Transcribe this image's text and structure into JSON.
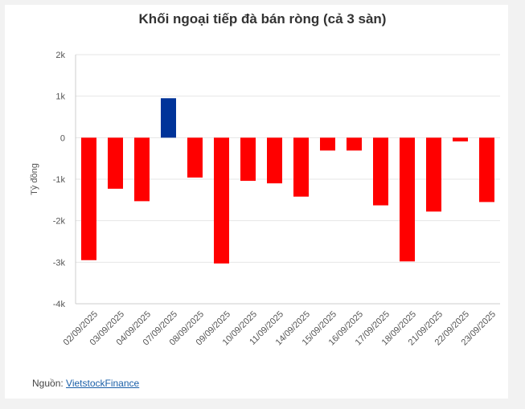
{
  "chart_data": {
    "type": "bar",
    "title": "Khối ngoại tiếp đà bán ròng (cả 3 sàn)",
    "ylabel": "Tỷ đồng",
    "xlabel": "",
    "ylim": [
      -4000,
      2000
    ],
    "yticks": [
      2000,
      1000,
      0,
      -1000,
      -2000,
      -3000,
      -4000
    ],
    "ytick_labels": [
      "2k",
      "1k",
      "0",
      "-1k",
      "-2k",
      "-3k",
      "-4k"
    ],
    "categories": [
      "02/09/2025",
      "03/09/2025",
      "04/09/2025",
      "07/09/2025",
      "08/09/2025",
      "09/09/2025",
      "10/09/2025",
      "11/09/2025",
      "14/09/2025",
      "15/09/2025",
      "16/09/2025",
      "17/09/2025",
      "18/09/2025",
      "21/09/2025",
      "22/09/2025",
      "23/09/2025"
    ],
    "values": [
      -2950,
      -1230,
      -1530,
      950,
      -960,
      -3030,
      -1040,
      -1100,
      -1420,
      -310,
      -310,
      -1630,
      -2980,
      -1780,
      -90,
      -1550
    ],
    "grid": true,
    "legend": "none",
    "colors": {
      "positive": "#003399",
      "negative": "#ff0000"
    }
  },
  "source": {
    "label": "Nguồn:",
    "link": "VietstockFinance"
  }
}
